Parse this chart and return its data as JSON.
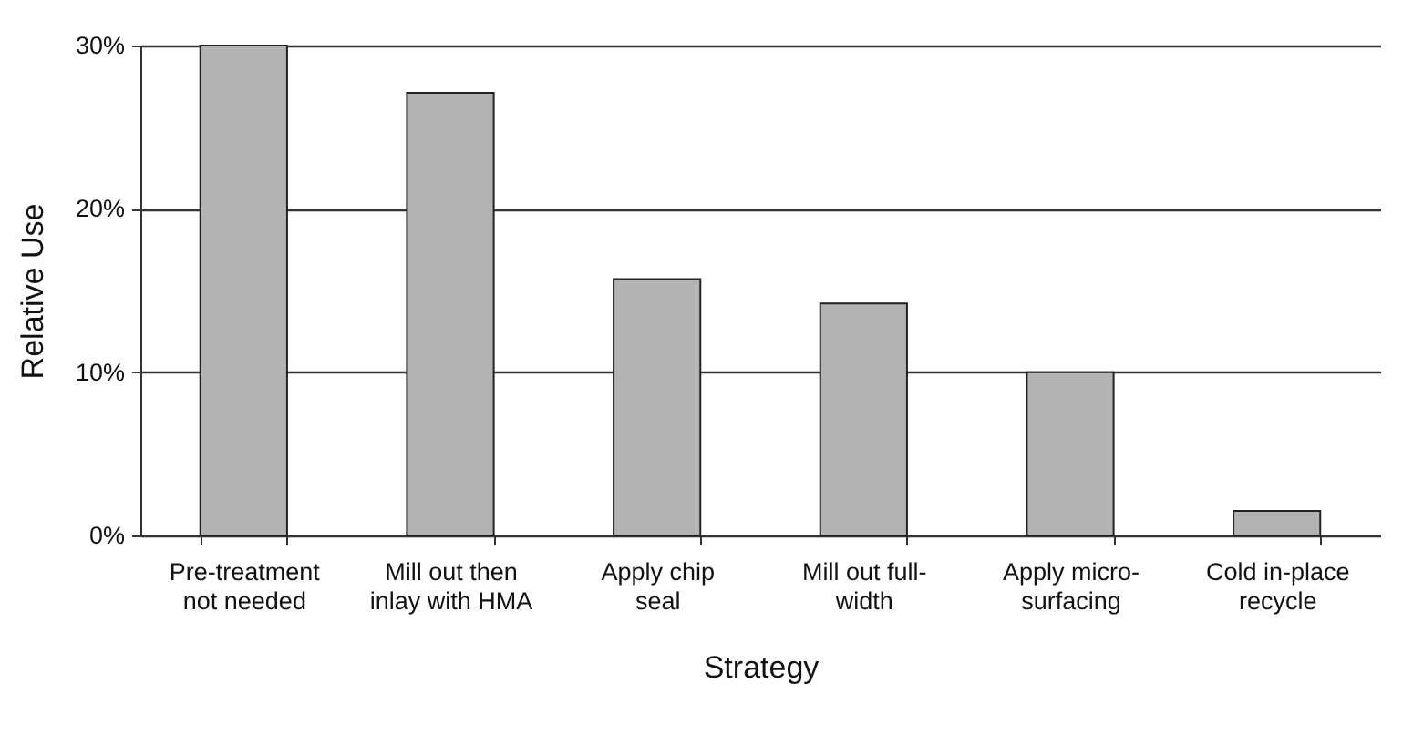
{
  "chart_data": {
    "type": "bar",
    "xlabel": "Strategy",
    "ylabel": "Relative Use",
    "categories": [
      "Pre-treatment not needed",
      "Mill out then inlay with HMA",
      "Apply chip seal",
      "Mill out full-width",
      "Apply micro-surfacing",
      "Cold in-place recycle"
    ],
    "values": [
      30,
      27.1,
      15.7,
      14.2,
      10,
      1.5
    ],
    "color": "#b3b3b3",
    "ylim": [
      0,
      30
    ],
    "yticks": [
      {
        "value": 0,
        "label": "0%"
      },
      {
        "value": 10,
        "label": "10%"
      },
      {
        "value": 20,
        "label": "20%"
      },
      {
        "value": 30,
        "label": "30%"
      }
    ],
    "grid": "y"
  }
}
